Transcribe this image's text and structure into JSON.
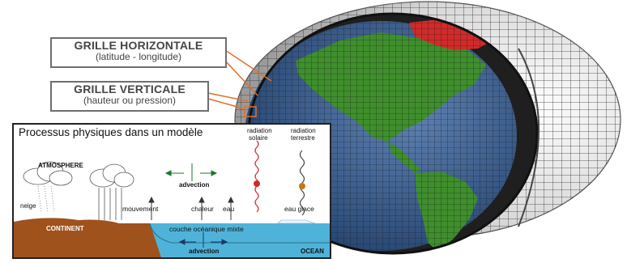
{
  "labels": {
    "horizontal_grid": {
      "title": "GRILLE HORIZONTALE",
      "subtitle": "(latitude - longitude)"
    },
    "vertical_grid": {
      "title": "GRILLE VERTICALE",
      "subtitle": "(hauteur ou pression)"
    }
  },
  "process_panel": {
    "title": "Processus physiques dans un modèle",
    "atmosphere": "ATMOSPHERE",
    "snow": "neige",
    "continent": "CONTINENT",
    "advection_top": "advection",
    "solar_radiation": [
      "radiation",
      "solaire"
    ],
    "terrestrial_radiation": [
      "radiation",
      "terrestre"
    ],
    "fluxes": [
      "mouvement",
      "chaleur",
      "eau"
    ],
    "ice": "eau glace",
    "mixed_layer": "couche océanique mixte",
    "advection_bottom": "advection",
    "ocean": "OCEAN"
  },
  "colors": {
    "grid_line": "#3a3a3a",
    "land": "#3f8f2c",
    "sea": "#3d5f8e",
    "arctic": "#d22a2a",
    "soil": "#a0521c",
    "ocean": "#4fb3d9",
    "leader": "#e0702a"
  }
}
